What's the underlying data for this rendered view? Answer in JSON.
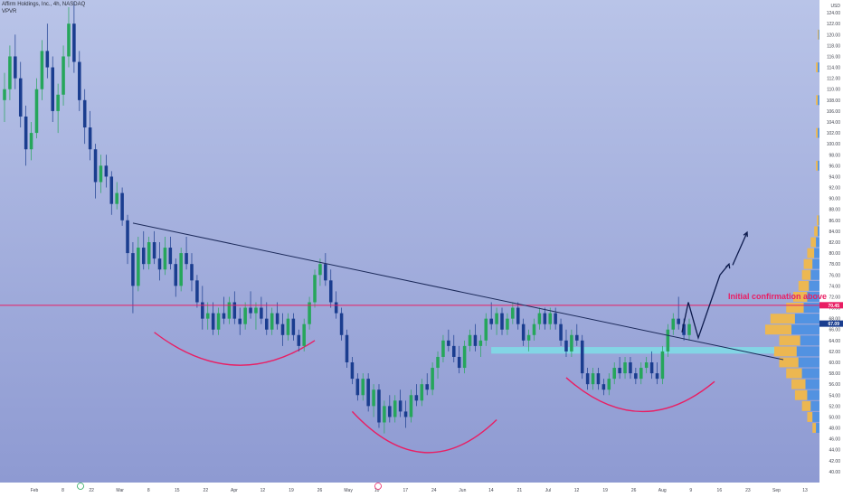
{
  "header": {
    "symbol_line": "Affirm Holdings, Inc., 4h, NASDAQ",
    "indicator": "VPVR"
  },
  "colors": {
    "background_top": "#b9c4e8",
    "background_bottom": "#8e9ad2",
    "candle_up": "#26a65b",
    "candle_down": "#1a3d8f",
    "trendline": "#1c2a5a",
    "resistance": "#e91e63",
    "support_zone": "#7fdde8",
    "arcs": "#e91e63",
    "arrow": "#0d1b4d",
    "vpvr_up": "#f5b942",
    "vpvr_down": "#4a90e2",
    "price_badge": "#1a3d8f",
    "level_badge": "#e91e63"
  },
  "chart_data": {
    "type": "candlestick",
    "symbol": "Affirm Holdings, Inc.",
    "timeframe": "4h",
    "exchange": "NASDAQ",
    "indicator": "VPVR",
    "ylim": [
      38,
      126
    ],
    "y_ticks": [
      "40.00",
      "42.00",
      "44.00",
      "46.00",
      "48.00",
      "50.00",
      "52.00",
      "54.00",
      "56.00",
      "58.00",
      "60.00",
      "62.00",
      "64.00",
      "66.00",
      "68.00",
      "70.00",
      "72.00",
      "74.00",
      "76.00",
      "78.00",
      "80.00",
      "82.00",
      "84.00",
      "86.00",
      "88.00",
      "90.00",
      "92.00",
      "94.00",
      "96.00",
      "98.00",
      "100.00",
      "102.00",
      "104.00",
      "106.00",
      "108.00",
      "110.00",
      "112.00",
      "114.00",
      "116.00",
      "118.00",
      "120.00",
      "122.00",
      "124.00"
    ],
    "y_axis_unit": "USD",
    "x_ticks": [
      "Feb",
      "8",
      "22",
      "Mar",
      "8",
      "15",
      "22",
      "Apr",
      "12",
      "19",
      "26",
      "May",
      "10",
      "17",
      "24",
      "Jun",
      "14",
      "21",
      "Jul",
      "12",
      "19",
      "26",
      "Aug",
      "9",
      "16",
      "23",
      "Sep",
      "13"
    ],
    "current_price_label": "67.09",
    "resistance_label": "70.45",
    "resistance_level": 70.45,
    "support_zone": [
      61.6,
      62.8
    ],
    "trendline": {
      "from": {
        "date": "Mar 8",
        "price": 85.5
      },
      "to": {
        "date": "Sep 2",
        "price": 60.5
      }
    },
    "annotations": [
      "Initial confirmation above"
    ],
    "candles": [
      {
        "date": "Feb 1",
        "o": 108,
        "h": 113,
        "l": 104,
        "c": 110
      },
      {
        "date": "Feb 2",
        "o": 110,
        "h": 118,
        "l": 108,
        "c": 116
      },
      {
        "date": "Feb 3",
        "o": 116,
        "h": 120,
        "l": 110,
        "c": 112
      },
      {
        "date": "Feb 4",
        "o": 112,
        "h": 115,
        "l": 103,
        "c": 105
      },
      {
        "date": "Feb 5",
        "o": 105,
        "h": 107,
        "l": 96,
        "c": 99
      },
      {
        "date": "Feb 8",
        "o": 99,
        "h": 104,
        "l": 97,
        "c": 102
      },
      {
        "date": "Feb 9",
        "o": 102,
        "h": 112,
        "l": 101,
        "c": 110
      },
      {
        "date": "Feb 10",
        "o": 110,
        "h": 119,
        "l": 108,
        "c": 117
      },
      {
        "date": "Feb 11",
        "o": 117,
        "h": 122,
        "l": 112,
        "c": 114
      },
      {
        "date": "Feb 12",
        "o": 114,
        "h": 116,
        "l": 104,
        "c": 106
      },
      {
        "date": "Feb 16",
        "o": 106,
        "h": 111,
        "l": 102,
        "c": 109
      },
      {
        "date": "Feb 17",
        "o": 109,
        "h": 118,
        "l": 107,
        "c": 116
      },
      {
        "date": "Feb 18",
        "o": 116,
        "h": 125,
        "l": 114,
        "c": 122
      },
      {
        "date": "Feb 19",
        "o": 122,
        "h": 126,
        "l": 113,
        "c": 115
      },
      {
        "date": "Feb 22",
        "o": 115,
        "h": 117,
        "l": 106,
        "c": 108
      },
      {
        "date": "Feb 23",
        "o": 108,
        "h": 110,
        "l": 100,
        "c": 103
      },
      {
        "date": "Feb 24",
        "o": 103,
        "h": 106,
        "l": 97,
        "c": 99
      },
      {
        "date": "Feb 25",
        "o": 99,
        "h": 100,
        "l": 90,
        "c": 93
      },
      {
        "date": "Feb 26",
        "o": 93,
        "h": 98,
        "l": 91,
        "c": 96
      },
      {
        "date": "Mar 1",
        "o": 96,
        "h": 98,
        "l": 92,
        "c": 94
      },
      {
        "date": "Mar 2",
        "o": 94,
        "h": 95,
        "l": 87,
        "c": 89
      },
      {
        "date": "Mar 3",
        "o": 89,
        "h": 93,
        "l": 88,
        "c": 91
      },
      {
        "date": "Mar 4",
        "o": 91,
        "h": 92,
        "l": 85,
        "c": 86
      },
      {
        "date": "Mar 5",
        "o": 86,
        "h": 87,
        "l": 78,
        "c": 80
      },
      {
        "date": "Mar 8",
        "o": 80,
        "h": 82,
        "l": 69,
        "c": 74
      },
      {
        "date": "Mar 9",
        "o": 74,
        "h": 83,
        "l": 73,
        "c": 81
      },
      {
        "date": "Mar 10",
        "o": 81,
        "h": 84,
        "l": 77,
        "c": 78
      },
      {
        "date": "Mar 11",
        "o": 78,
        "h": 83,
        "l": 77,
        "c": 82
      },
      {
        "date": "Mar 12",
        "o": 82,
        "h": 84,
        "l": 78,
        "c": 79
      },
      {
        "date": "Mar 15",
        "o": 79,
        "h": 82,
        "l": 75,
        "c": 77
      },
      {
        "date": "Mar 16",
        "o": 77,
        "h": 83,
        "l": 76,
        "c": 81
      },
      {
        "date": "Mar 17",
        "o": 81,
        "h": 83,
        "l": 77,
        "c": 78
      },
      {
        "date": "Mar 18",
        "o": 78,
        "h": 79,
        "l": 72,
        "c": 74
      },
      {
        "date": "Mar 19",
        "o": 74,
        "h": 81,
        "l": 73,
        "c": 80
      },
      {
        "date": "Mar 22",
        "o": 80,
        "h": 83,
        "l": 77,
        "c": 78
      },
      {
        "date": "Mar 23",
        "o": 78,
        "h": 80,
        "l": 73,
        "c": 75
      },
      {
        "date": "Mar 24",
        "o": 75,
        "h": 76,
        "l": 70,
        "c": 71
      },
      {
        "date": "Mar 25",
        "o": 71,
        "h": 74,
        "l": 66,
        "c": 68
      },
      {
        "date": "Mar 26",
        "o": 68,
        "h": 71,
        "l": 66,
        "c": 69
      },
      {
        "date": "Mar 29",
        "o": 69,
        "h": 71,
        "l": 65,
        "c": 66
      },
      {
        "date": "Mar 30",
        "o": 66,
        "h": 70,
        "l": 65,
        "c": 69
      },
      {
        "date": "Mar 31",
        "o": 69,
        "h": 72,
        "l": 67,
        "c": 68
      },
      {
        "date": "Apr 1",
        "o": 68,
        "h": 72,
        "l": 67,
        "c": 71
      },
      {
        "date": "Apr 5",
        "o": 71,
        "h": 73,
        "l": 67,
        "c": 68
      },
      {
        "date": "Apr 6",
        "o": 68,
        "h": 70,
        "l": 65,
        "c": 67
      },
      {
        "date": "Apr 7",
        "o": 67,
        "h": 71,
        "l": 66,
        "c": 70
      },
      {
        "date": "Apr 8",
        "o": 70,
        "h": 73,
        "l": 68,
        "c": 69
      },
      {
        "date": "Apr 9",
        "o": 69,
        "h": 71,
        "l": 66,
        "c": 70
      },
      {
        "date": "Apr 12",
        "o": 70,
        "h": 72,
        "l": 67,
        "c": 68
      },
      {
        "date": "Apr 13",
        "o": 68,
        "h": 71,
        "l": 65,
        "c": 66
      },
      {
        "date": "Apr 14",
        "o": 66,
        "h": 70,
        "l": 65,
        "c": 69
      },
      {
        "date": "Apr 15",
        "o": 69,
        "h": 71,
        "l": 66,
        "c": 67
      },
      {
        "date": "Apr 16",
        "o": 67,
        "h": 69,
        "l": 63,
        "c": 65
      },
      {
        "date": "Apr 19",
        "o": 65,
        "h": 69,
        "l": 64,
        "c": 68
      },
      {
        "date": "Apr 20",
        "o": 68,
        "h": 69,
        "l": 64,
        "c": 65
      },
      {
        "date": "Apr 21",
        "o": 65,
        "h": 66,
        "l": 62,
        "c": 63
      },
      {
        "date": "Apr 22",
        "o": 63,
        "h": 68,
        "l": 62,
        "c": 67
      },
      {
        "date": "Apr 23",
        "o": 67,
        "h": 72,
        "l": 66,
        "c": 71
      },
      {
        "date": "Apr 26",
        "o": 71,
        "h": 77,
        "l": 70,
        "c": 76
      },
      {
        "date": "Apr 27",
        "o": 76,
        "h": 79,
        "l": 74,
        "c": 78
      },
      {
        "date": "Apr 28",
        "o": 78,
        "h": 80,
        "l": 74,
        "c": 75
      },
      {
        "date": "Apr 29",
        "o": 75,
        "h": 77,
        "l": 70,
        "c": 71
      },
      {
        "date": "Apr 30",
        "o": 71,
        "h": 73,
        "l": 68,
        "c": 69
      },
      {
        "date": "May 3",
        "o": 69,
        "h": 70,
        "l": 64,
        "c": 65
      },
      {
        "date": "May 4",
        "o": 65,
        "h": 66,
        "l": 59,
        "c": 60
      },
      {
        "date": "May 5",
        "o": 60,
        "h": 61,
        "l": 56,
        "c": 57
      },
      {
        "date": "May 6",
        "o": 57,
        "h": 58,
        "l": 53,
        "c": 54
      },
      {
        "date": "May 7",
        "o": 54,
        "h": 58,
        "l": 53,
        "c": 57
      },
      {
        "date": "May 10",
        "o": 57,
        "h": 58,
        "l": 51,
        "c": 52
      },
      {
        "date": "May 11",
        "o": 52,
        "h": 56,
        "l": 50,
        "c": 55
      },
      {
        "date": "May 12",
        "o": 55,
        "h": 56,
        "l": 48,
        "c": 49
      },
      {
        "date": "May 13",
        "o": 49,
        "h": 53,
        "l": 47,
        "c": 52
      },
      {
        "date": "May 14",
        "o": 52,
        "h": 54,
        "l": 49,
        "c": 50
      },
      {
        "date": "May 17",
        "o": 50,
        "h": 54,
        "l": 49,
        "c": 53
      },
      {
        "date": "May 18",
        "o": 53,
        "h": 55,
        "l": 50,
        "c": 51
      },
      {
        "date": "May 19",
        "o": 51,
        "h": 53,
        "l": 48,
        "c": 50
      },
      {
        "date": "May 20",
        "o": 50,
        "h": 55,
        "l": 49,
        "c": 54
      },
      {
        "date": "May 21",
        "o": 54,
        "h": 56,
        "l": 52,
        "c": 53
      },
      {
        "date": "May 24",
        "o": 53,
        "h": 57,
        "l": 52,
        "c": 56
      },
      {
        "date": "May 25",
        "o": 56,
        "h": 58,
        "l": 54,
        "c": 55
      },
      {
        "date": "May 26",
        "o": 55,
        "h": 60,
        "l": 54,
        "c": 59
      },
      {
        "date": "May 27",
        "o": 59,
        "h": 62,
        "l": 57,
        "c": 61
      },
      {
        "date": "May 28",
        "o": 61,
        "h": 65,
        "l": 60,
        "c": 64
      },
      {
        "date": "Jun 1",
        "o": 64,
        "h": 66,
        "l": 62,
        "c": 63
      },
      {
        "date": "Jun 2",
        "o": 63,
        "h": 65,
        "l": 60,
        "c": 61
      },
      {
        "date": "Jun 3",
        "o": 61,
        "h": 63,
        "l": 58,
        "c": 59
      },
      {
        "date": "Jun 4",
        "o": 59,
        "h": 64,
        "l": 58,
        "c": 63
      },
      {
        "date": "Jun 7",
        "o": 63,
        "h": 66,
        "l": 62,
        "c": 65
      },
      {
        "date": "Jun 8",
        "o": 65,
        "h": 67,
        "l": 62,
        "c": 63
      },
      {
        "date": "Jun 9",
        "o": 63,
        "h": 65,
        "l": 61,
        "c": 64
      },
      {
        "date": "Jun 10",
        "o": 64,
        "h": 69,
        "l": 63,
        "c": 68
      },
      {
        "date": "Jun 11",
        "o": 68,
        "h": 71,
        "l": 66,
        "c": 67
      },
      {
        "date": "Jun 14",
        "o": 67,
        "h": 70,
        "l": 65,
        "c": 69
      },
      {
        "date": "Jun 15",
        "o": 69,
        "h": 70,
        "l": 65,
        "c": 66
      },
      {
        "date": "Jun 16",
        "o": 66,
        "h": 69,
        "l": 65,
        "c": 68
      },
      {
        "date": "Jun 17",
        "o": 68,
        "h": 71,
        "l": 67,
        "c": 70
      },
      {
        "date": "Jun 18",
        "o": 70,
        "h": 71,
        "l": 66,
        "c": 67
      },
      {
        "date": "Jun 21",
        "o": 67,
        "h": 68,
        "l": 63,
        "c": 64
      },
      {
        "date": "Jun 22",
        "o": 64,
        "h": 66,
        "l": 62,
        "c": 65
      },
      {
        "date": "Jun 23",
        "o": 65,
        "h": 68,
        "l": 64,
        "c": 67
      },
      {
        "date": "Jun 24",
        "o": 67,
        "h": 70,
        "l": 66,
        "c": 69
      },
      {
        "date": "Jun 25",
        "o": 69,
        "h": 70,
        "l": 66,
        "c": 67
      },
      {
        "date": "Jun 28",
        "o": 67,
        "h": 70,
        "l": 66,
        "c": 69
      },
      {
        "date": "Jun 29",
        "o": 69,
        "h": 70,
        "l": 66,
        "c": 67
      },
      {
        "date": "Jun 30",
        "o": 67,
        "h": 68,
        "l": 63,
        "c": 64
      },
      {
        "date": "Jul 1",
        "o": 64,
        "h": 66,
        "l": 61,
        "c": 62
      },
      {
        "date": "Jul 2",
        "o": 62,
        "h": 66,
        "l": 61,
        "c": 65
      },
      {
        "date": "Jul 6",
        "o": 65,
        "h": 67,
        "l": 63,
        "c": 64
      },
      {
        "date": "Jul 7",
        "o": 64,
        "h": 65,
        "l": 57,
        "c": 58
      },
      {
        "date": "Jul 8",
        "o": 58,
        "h": 59,
        "l": 55,
        "c": 56
      },
      {
        "date": "Jul 9",
        "o": 56,
        "h": 59,
        "l": 55,
        "c": 58
      },
      {
        "date": "Jul 12",
        "o": 58,
        "h": 59,
        "l": 55,
        "c": 56
      },
      {
        "date": "Jul 13",
        "o": 56,
        "h": 57,
        "l": 54,
        "c": 55
      },
      {
        "date": "Jul 14",
        "o": 55,
        "h": 58,
        "l": 54,
        "c": 57
      },
      {
        "date": "Jul 15",
        "o": 57,
        "h": 60,
        "l": 56,
        "c": 59
      },
      {
        "date": "Jul 16",
        "o": 59,
        "h": 61,
        "l": 57,
        "c": 58
      },
      {
        "date": "Jul 19",
        "o": 58,
        "h": 61,
        "l": 57,
        "c": 60
      },
      {
        "date": "Jul 20",
        "o": 60,
        "h": 61,
        "l": 57,
        "c": 58
      },
      {
        "date": "Jul 21",
        "o": 58,
        "h": 59,
        "l": 56,
        "c": 57
      },
      {
        "date": "Jul 22",
        "o": 57,
        "h": 60,
        "l": 56,
        "c": 59
      },
      {
        "date": "Jul 23",
        "o": 59,
        "h": 61,
        "l": 58,
        "c": 60
      },
      {
        "date": "Jul 26",
        "o": 60,
        "h": 62,
        "l": 57,
        "c": 58
      },
      {
        "date": "Jul 27",
        "o": 58,
        "h": 60,
        "l": 56,
        "c": 57
      },
      {
        "date": "Jul 28",
        "o": 57,
        "h": 63,
        "l": 56,
        "c": 62
      },
      {
        "date": "Jul 29",
        "o": 62,
        "h": 67,
        "l": 61,
        "c": 66
      },
      {
        "date": "Jul 30",
        "o": 66,
        "h": 69,
        "l": 65,
        "c": 68
      },
      {
        "date": "Aug 2",
        "o": 68,
        "h": 72,
        "l": 66,
        "c": 67
      },
      {
        "date": "Aug 3",
        "o": 67,
        "h": 68,
        "l": 64,
        "c": 65
      },
      {
        "date": "Aug 4",
        "o": 65,
        "h": 68,
        "l": 64,
        "c": 67
      }
    ],
    "vpvr": [
      {
        "price": 86,
        "up": 1,
        "down": 0.5
      },
      {
        "price": 84,
        "up": 2,
        "down": 1
      },
      {
        "price": 82,
        "up": 3,
        "down": 2
      },
      {
        "price": 80,
        "up": 4,
        "down": 3
      },
      {
        "price": 78,
        "up": 5,
        "down": 4
      },
      {
        "price": 76,
        "up": 5,
        "down": 5
      },
      {
        "price": 74,
        "up": 6,
        "down": 6
      },
      {
        "price": 72,
        "up": 8,
        "down": 7
      },
      {
        "price": 70,
        "up": 10,
        "down": 9
      },
      {
        "price": 68,
        "up": 14,
        "down": 14
      },
      {
        "price": 66,
        "up": 15,
        "down": 16
      },
      {
        "price": 64,
        "up": 12,
        "down": 11
      },
      {
        "price": 62,
        "up": 13,
        "down": 13
      },
      {
        "price": 60,
        "up": 11,
        "down": 12
      },
      {
        "price": 58,
        "up": 9,
        "down": 10
      },
      {
        "price": 56,
        "up": 8,
        "down": 8
      },
      {
        "price": 54,
        "up": 7,
        "down": 7
      },
      {
        "price": 52,
        "up": 5,
        "down": 5
      },
      {
        "price": 50,
        "up": 3,
        "down": 4
      },
      {
        "price": 48,
        "up": 2,
        "down": 2
      },
      {
        "price": 96,
        "up": 1,
        "down": 1
      },
      {
        "price": 102,
        "up": 1,
        "down": 1
      },
      {
        "price": 108,
        "up": 1,
        "down": 1
      },
      {
        "price": 114,
        "up": 1,
        "down": 1
      },
      {
        "price": 120,
        "up": 0.5,
        "down": 0.5
      }
    ]
  }
}
